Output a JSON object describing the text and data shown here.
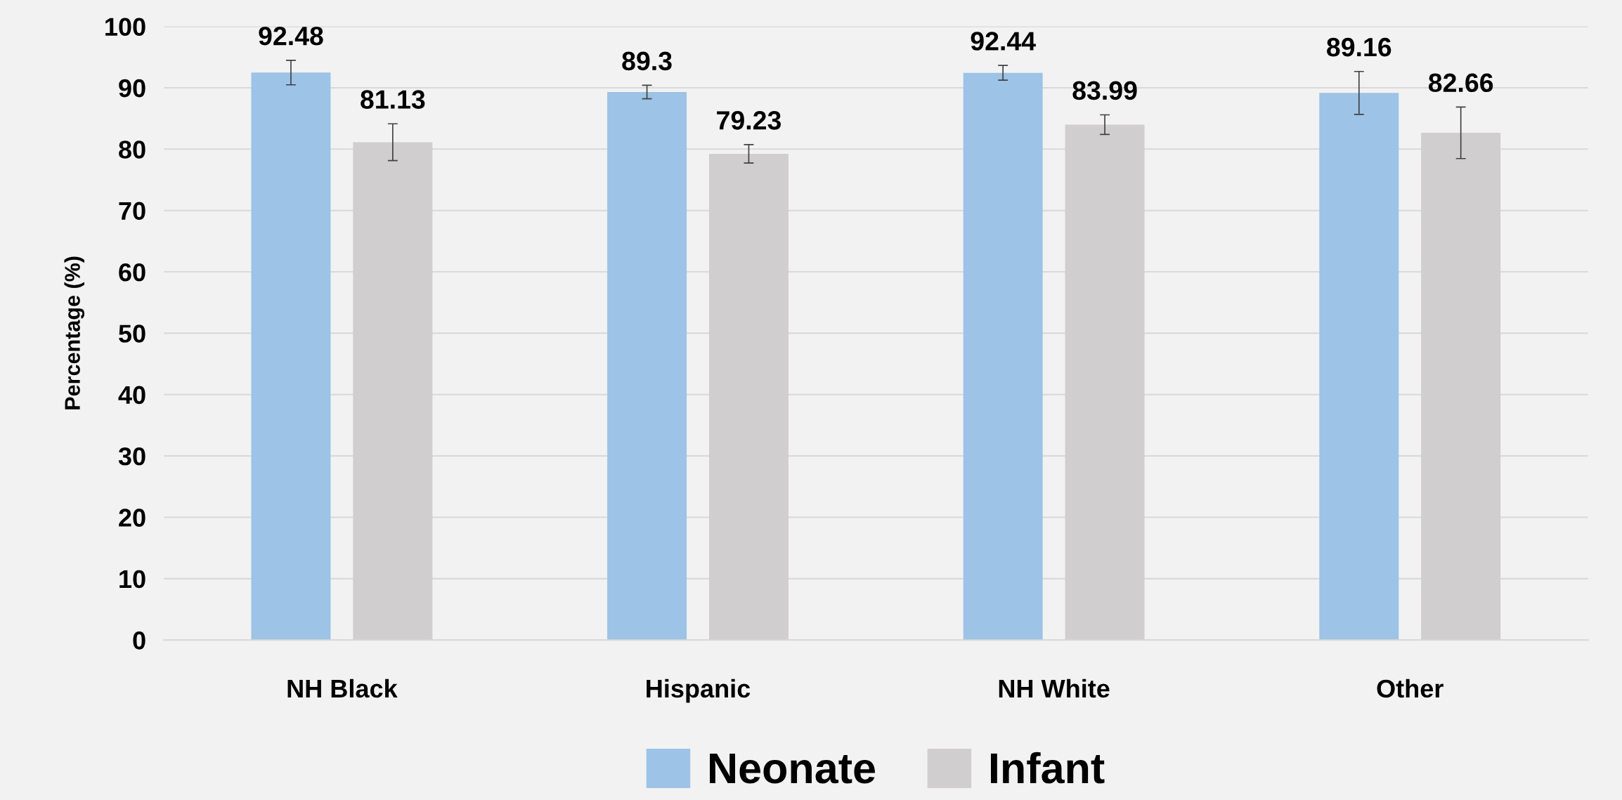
{
  "chart_data": {
    "type": "bar",
    "ylabel": "Percentage (%)",
    "categories": [
      "NH Black",
      "Hispanic",
      "NH White",
      "Other"
    ],
    "series": [
      {
        "name": "Neonate",
        "color": "#9dc3e6",
        "values": [
          92.48,
          89.3,
          92.44,
          89.16
        ],
        "errors": [
          2.0,
          1.1,
          1.2,
          3.5
        ]
      },
      {
        "name": "Infant",
        "color": "#d0cece",
        "values": [
          81.13,
          79.23,
          83.99,
          82.66
        ],
        "errors": [
          3.0,
          1.5,
          1.6,
          4.2
        ]
      }
    ],
    "ylim": [
      0,
      100
    ],
    "yticks": [
      0,
      10,
      20,
      30,
      40,
      50,
      60,
      70,
      80,
      90,
      100
    ],
    "grid": "y",
    "legend": "bottom",
    "data_labels": true
  }
}
